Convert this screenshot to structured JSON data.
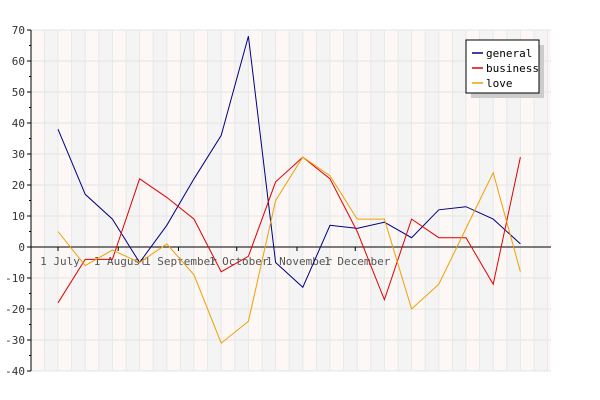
{
  "chart_data": {
    "type": "line",
    "title": "",
    "xlabel": "",
    "ylabel": "",
    "ylim": [
      -40,
      70
    ],
    "yticks": [
      70,
      60,
      50,
      40,
      30,
      20,
      10,
      0,
      -10,
      -20,
      -30,
      -40
    ],
    "xtick_labels": [
      "1 July",
      "1 August",
      "1 September",
      "1 October",
      "1 November",
      "1 December"
    ],
    "x": [
      "Jul 1",
      "Jul 15",
      "Jul 29",
      "Aug 12",
      "Aug 26",
      "Sep 9",
      "Sep 23",
      "Oct 7",
      "Oct 21",
      "Nov 4",
      "Nov 18",
      "Dec 2",
      "Dec 16",
      "Dec 30",
      "Jan 13",
      "Jan 27",
      "Feb 10",
      "Feb 24"
    ],
    "grid": true,
    "legend_position": "top-right",
    "series": [
      {
        "name": "general",
        "color": "#000080",
        "values": [
          38,
          17,
          9,
          -5,
          7,
          22,
          36,
          68,
          -5,
          -13,
          7,
          6,
          8,
          3,
          12,
          13,
          9,
          1
        ]
      },
      {
        "name": "business",
        "color": "#e00000",
        "values": [
          -18,
          -4,
          -4,
          22,
          16,
          9,
          -8,
          -3,
          21,
          29,
          22,
          5,
          -17,
          9,
          3,
          3,
          -12,
          29
        ]
      },
      {
        "name": "love",
        "color": "#f0a000",
        "values": [
          5,
          -6,
          -1,
          -5,
          1,
          -9,
          -31,
          -24,
          15,
          29,
          23,
          9,
          9,
          -20,
          -12,
          6,
          24,
          -8
        ]
      }
    ]
  }
}
